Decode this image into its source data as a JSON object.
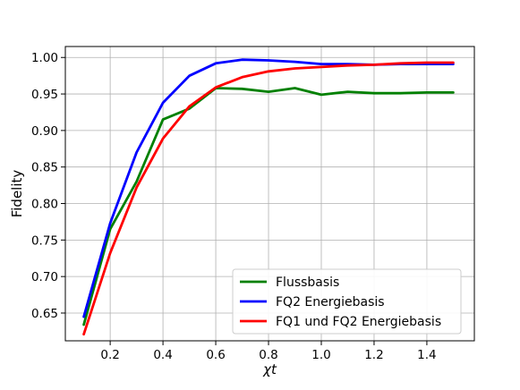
{
  "chart_data": {
    "type": "line",
    "title": "",
    "xlabel": "χt",
    "ylabel": "Fidelity",
    "xlim": [
      0.03,
      1.58
    ],
    "ylim": [
      0.612,
      1.015
    ],
    "xticks": [
      0.2,
      0.4,
      0.6,
      0.8,
      1.0,
      1.2,
      1.4
    ],
    "xtick_labels": [
      "0.2",
      "0.4",
      "0.6",
      "0.8",
      "1.0",
      "1.2",
      "1.4"
    ],
    "yticks": [
      0.65,
      0.7,
      0.75,
      0.8,
      0.85,
      0.9,
      0.95,
      1.0
    ],
    "ytick_labels": [
      "0.65",
      "0.70",
      "0.75",
      "0.80",
      "0.85",
      "0.90",
      "0.95",
      "1.00"
    ],
    "grid": true,
    "legend_position": "lower-right",
    "x": [
      0.1,
      0.2,
      0.3,
      0.4,
      0.5,
      0.6,
      0.7,
      0.8,
      0.9,
      1.0,
      1.1,
      1.2,
      1.3,
      1.4,
      1.5
    ],
    "series": [
      {
        "name": "Flussbasis",
        "color": "#008000",
        "values": [
          0.634,
          0.765,
          0.83,
          0.915,
          0.93,
          0.958,
          0.957,
          0.953,
          0.958,
          0.949,
          0.953,
          0.951,
          0.951,
          0.952,
          0.952
        ]
      },
      {
        "name": "FQ2 Energiebasis",
        "color": "#0000ff",
        "values": [
          0.645,
          0.773,
          0.87,
          0.938,
          0.975,
          0.992,
          0.997,
          0.996,
          0.994,
          0.991,
          0.991,
          0.99,
          0.991,
          0.991,
          0.991
        ]
      },
      {
        "name": "FQ1 und FQ2 Energiebasis",
        "color": "#ff0000",
        "values": [
          0.621,
          0.732,
          0.822,
          0.889,
          0.933,
          0.959,
          0.973,
          0.981,
          0.985,
          0.987,
          0.989,
          0.99,
          0.992,
          0.993,
          0.993
        ]
      }
    ]
  }
}
